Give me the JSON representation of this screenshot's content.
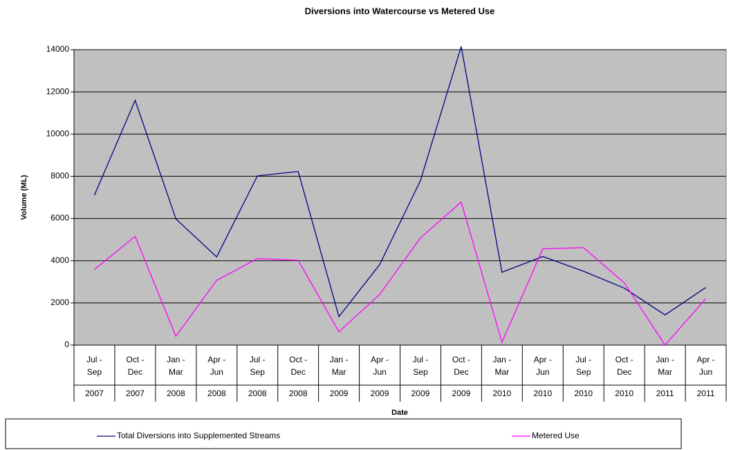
{
  "chart_data": {
    "type": "line",
    "title": "Diversions into Watercourse vs Metered Use",
    "x_label": "Date",
    "y_label": "Volume (ML)",
    "categories": [
      "Jul - Sep",
      "Oct - Dec",
      "Jan - Mar",
      "Apr - Jun",
      "Jul - Sep",
      "Oct - Dec",
      "Jan - Mar",
      "Apr - Jun",
      "Jul - Sep",
      "Oct - Dec",
      "Jan - Mar",
      "Apr - Jun",
      "Jul - Sep",
      "Oct - Dec",
      "Jan - Mar",
      "Apr - Jun"
    ],
    "category_years": [
      "2007",
      "2007",
      "2008",
      "2008",
      "2008",
      "2008",
      "2009",
      "2009",
      "2009",
      "2009",
      "2010",
      "2010",
      "2010",
      "2010",
      "2011",
      "2011"
    ],
    "series": [
      {
        "name": "Total Diversions into Supplemented Streams",
        "color": "#000080",
        "values": [
          7100,
          11600,
          5980,
          4180,
          8020,
          8230,
          1350,
          3820,
          7800,
          14150,
          3450,
          4200,
          3500,
          2700,
          1430,
          2730
        ]
      },
      {
        "name": "Metered Use",
        "color": "#ff00ff",
        "values": [
          3580,
          5150,
          420,
          3070,
          4100,
          4020,
          630,
          2400,
          5080,
          6780,
          130,
          4560,
          4620,
          2950,
          0,
          2200
        ]
      }
    ],
    "ylim": [
      0,
      14000
    ],
    "yticks": [
      0,
      2000,
      4000,
      6000,
      8000,
      10000,
      12000,
      14000
    ],
    "grid": true,
    "legend": "bottom",
    "plot_background": "#c0c0c0"
  }
}
